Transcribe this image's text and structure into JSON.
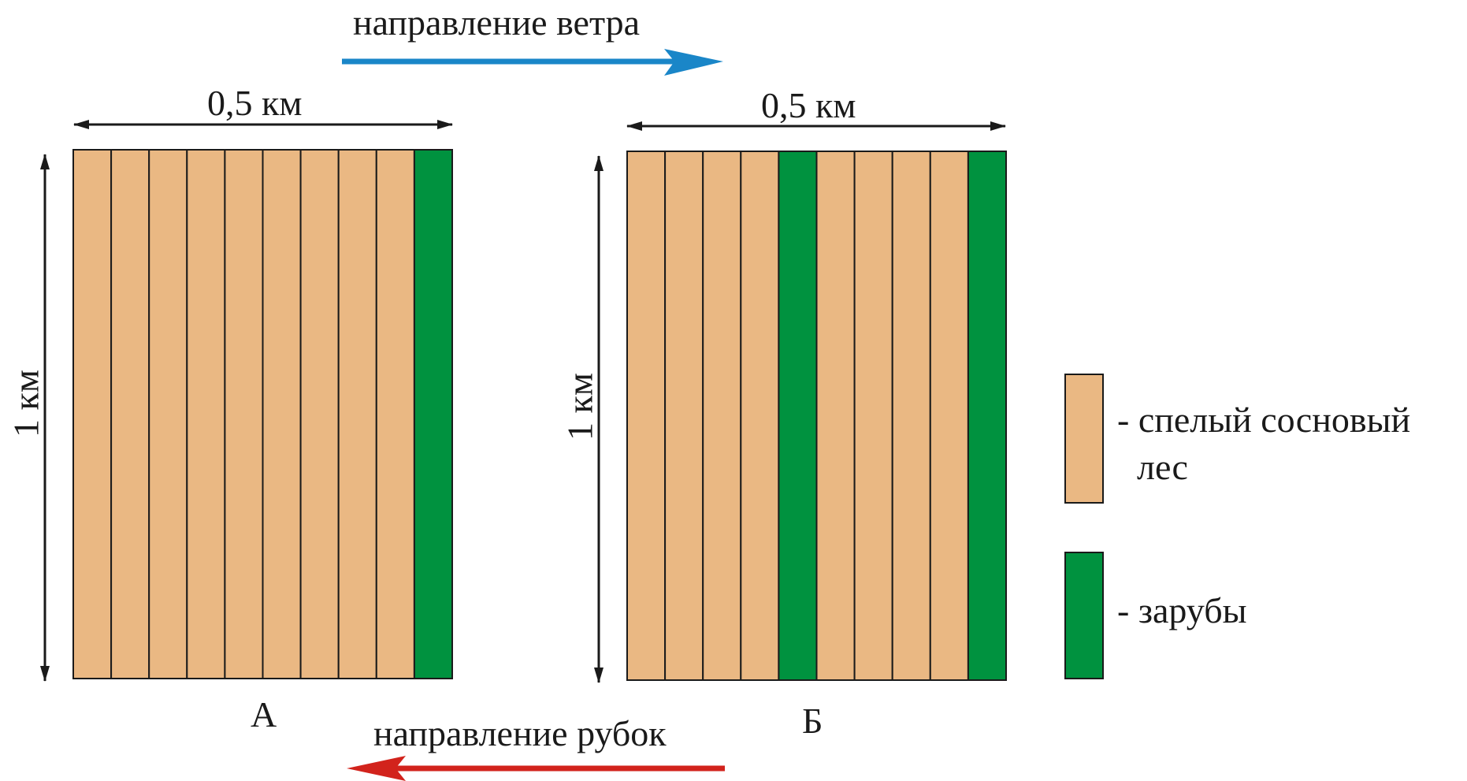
{
  "wind_direction_label": "направление ветра",
  "cutting_direction_label": "направление рубок",
  "plot_a": {
    "label": "А",
    "width_label": "0,5 км",
    "height_label": "1 км",
    "strips": 10,
    "cut_strips": [
      10
    ]
  },
  "plot_b": {
    "label": "Б",
    "width_label": "0,5 км",
    "height_label": "1 км",
    "strips": 10,
    "cut_strips": [
      5,
      10
    ]
  },
  "legend": {
    "forest_line1": "- спелый сосновый",
    "forest_line2": "лес",
    "cut": "- зарубы"
  },
  "colors": {
    "forest": "#eab883",
    "cut": "#00923f",
    "wind_arrow": "#1a86c8",
    "cutting_arrow": "#d2231c",
    "dimension": "#1a1a1a"
  }
}
